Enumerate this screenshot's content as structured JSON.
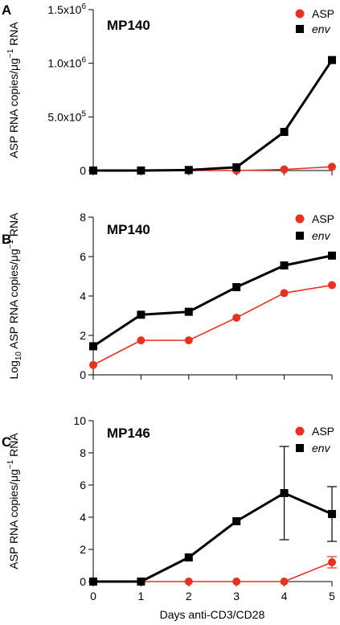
{
  "chart_data": [
    {
      "type": "line",
      "panel_label": "A",
      "title": "MP140",
      "ylabel": "ASP RNA copies/μg⁻¹ RNA",
      "ylim": [
        0,
        1500000
      ],
      "yticks": [
        {
          "value": 0,
          "label": "0"
        },
        {
          "value": 500000,
          "label": "5.0x10⁵"
        },
        {
          "value": 1000000,
          "label": "1.0x10⁶"
        },
        {
          "value": 1500000,
          "label": "1.5x10⁶"
        }
      ],
      "x": [
        0,
        1,
        2,
        3,
        4,
        5
      ],
      "legend_position": "top-right",
      "series": [
        {
          "name": "ASP",
          "color": "#e8321f",
          "marker": "circle",
          "italic": false,
          "values": [
            0,
            0,
            0,
            0,
            10000,
            35000
          ]
        },
        {
          "name": "env",
          "color": "#000000",
          "marker": "square",
          "italic": true,
          "values": [
            0,
            0,
            5000,
            30000,
            360000,
            1030000
          ]
        }
      ]
    },
    {
      "type": "line",
      "panel_label": "B",
      "title": "MP140",
      "ylabel_prefix": "Log",
      "ylabel_sub": "10",
      "ylabel_rest": " ASP RNA copies/μg⁻¹ RNA",
      "ylim": [
        0,
        8
      ],
      "yticks": [
        {
          "value": 0,
          "label": "0"
        },
        {
          "value": 2,
          "label": "2"
        },
        {
          "value": 4,
          "label": "4"
        },
        {
          "value": 6,
          "label": "6"
        },
        {
          "value": 8,
          "label": "8"
        }
      ],
      "x": [
        0,
        1,
        2,
        3,
        4,
        5
      ],
      "legend_position": "top-right",
      "series": [
        {
          "name": "ASP",
          "color": "#e8321f",
          "marker": "circle",
          "italic": false,
          "values": [
            0.5,
            1.75,
            1.75,
            2.9,
            4.15,
            4.55
          ]
        },
        {
          "name": "env",
          "color": "#000000",
          "marker": "square",
          "italic": true,
          "values": [
            1.45,
            3.05,
            3.2,
            4.45,
            5.55,
            6.05
          ]
        }
      ]
    },
    {
      "type": "line",
      "panel_label": "C",
      "title": "MP146",
      "ylabel": "ASP RNA copies/μg⁻¹ RNA",
      "xlabel": "Days anti-CD3/CD28",
      "ylim": [
        0,
        10
      ],
      "yticks": [
        {
          "value": 0,
          "label": "0"
        },
        {
          "value": 2,
          "label": "2"
        },
        {
          "value": 4,
          "label": "4"
        },
        {
          "value": 6,
          "label": "6"
        },
        {
          "value": 8,
          "label": "8"
        },
        {
          "value": 10,
          "label": "10"
        }
      ],
      "x": [
        0,
        1,
        2,
        3,
        4,
        5
      ],
      "xtick_labels": [
        "0",
        "1",
        "2",
        "3",
        "4",
        "5"
      ],
      "legend_position": "top-right",
      "series": [
        {
          "name": "ASP",
          "color": "#e8321f",
          "marker": "circle",
          "italic": false,
          "values": [
            0,
            0,
            0,
            0,
            0,
            1.2
          ],
          "errors": [
            null,
            null,
            null,
            null,
            null,
            [
              0.85,
              1.55
            ]
          ]
        },
        {
          "name": "env",
          "color": "#000000",
          "marker": "square",
          "italic": true,
          "values": [
            0,
            0,
            1.5,
            3.75,
            5.5,
            4.2
          ],
          "errors": [
            null,
            null,
            null,
            null,
            [
              2.6,
              8.4
            ],
            [
              2.5,
              5.9
            ]
          ]
        }
      ]
    }
  ]
}
